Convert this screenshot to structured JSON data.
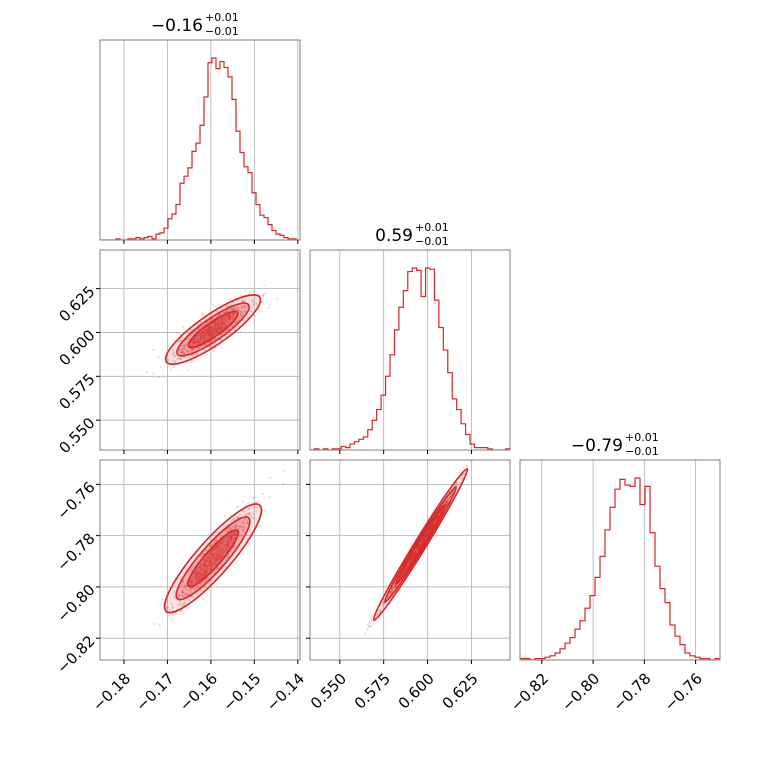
{
  "chart_data": {
    "type": "corner",
    "color": "#d62728",
    "grid": true,
    "titles": [
      {
        "median": "−0.16",
        "plus": "+0.01",
        "minus": "−0.01"
      },
      {
        "median": "0.59",
        "plus": "+0.01",
        "minus": "−0.01"
      },
      {
        "median": "−0.79",
        "plus": "+0.01",
        "minus": "−0.01"
      }
    ],
    "parameters": [
      {
        "range": [
          -0.1855,
          -0.1395
        ],
        "ticks": [
          -0.18,
          -0.17,
          -0.16,
          -0.15,
          -0.14
        ],
        "tick_labels": [
          "−0.18",
          "−0.17",
          "−0.16",
          "−0.15",
          "−0.14"
        ]
      },
      {
        "range": [
          0.533,
          0.647
        ],
        "ticks": [
          0.55,
          0.575,
          0.6,
          0.625
        ],
        "tick_labels": [
          "0.550",
          "0.575",
          "0.600",
          "0.625"
        ]
      },
      {
        "range": [
          -0.8285,
          -0.7505
        ],
        "ticks": [
          -0.82,
          -0.8,
          -0.78,
          -0.76
        ],
        "tick_labels": [
          "−0.82",
          "−0.80",
          "−0.78",
          "−0.76"
        ]
      }
    ],
    "histograms": [
      {
        "bins": [
          -0.1855,
          -0.1395
        ],
        "counts": [
          0,
          0,
          0,
          0,
          1,
          0,
          0,
          1,
          1,
          2,
          1,
          2,
          3,
          1,
          5,
          6,
          10,
          18,
          22,
          30,
          48,
          54,
          61,
          75,
          82,
          97,
          121,
          150,
          154,
          145,
          151,
          146,
          138,
          119,
          92,
          74,
          62,
          57,
          40,
          30,
          21,
          19,
          13,
          8,
          5,
          4,
          2,
          1,
          1,
          0
        ]
      },
      {
        "bins": [
          0.533,
          0.647
        ],
        "counts": [
          0,
          1,
          0,
          1,
          0,
          1,
          1,
          3,
          2,
          5,
          7,
          9,
          11,
          17,
          25,
          34,
          46,
          62,
          80,
          101,
          120,
          134,
          150,
          153,
          151,
          129,
          153,
          152,
          126,
          103,
          84,
          65,
          43,
          34,
          22,
          13,
          5,
          2,
          2,
          2,
          1,
          0,
          0,
          0,
          1
        ]
      },
      {
        "bins": [
          -0.8285,
          -0.7505
        ],
        "counts": [
          1,
          1,
          0,
          1,
          1,
          2,
          3,
          5,
          8,
          12,
          16,
          22,
          28,
          37,
          46,
          59,
          74,
          93,
          109,
          122,
          129,
          125,
          124,
          130,
          111,
          124,
          91,
          67,
          51,
          41,
          25,
          17,
          11,
          5,
          3,
          2,
          1,
          1,
          0,
          1
        ]
      }
    ],
    "scatter": [
      {
        "x_param": 0,
        "y_param": 1,
        "relation": "correlated",
        "slope": 1.72,
        "intercept": 0.876,
        "scatter_y": 0.0045,
        "n": 1000
      },
      {
        "x_param": 0,
        "y_param": 2,
        "relation": "correlated",
        "slope": 1.93,
        "intercept": -0.481,
        "scatter_y": 0.0035,
        "n": 1000
      },
      {
        "x_param": 1,
        "y_param": 2,
        "relation": "correlated",
        "slope": 1.11,
        "intercept": -1.445,
        "scatter_y": 0.0012,
        "n": 1000
      }
    ]
  }
}
